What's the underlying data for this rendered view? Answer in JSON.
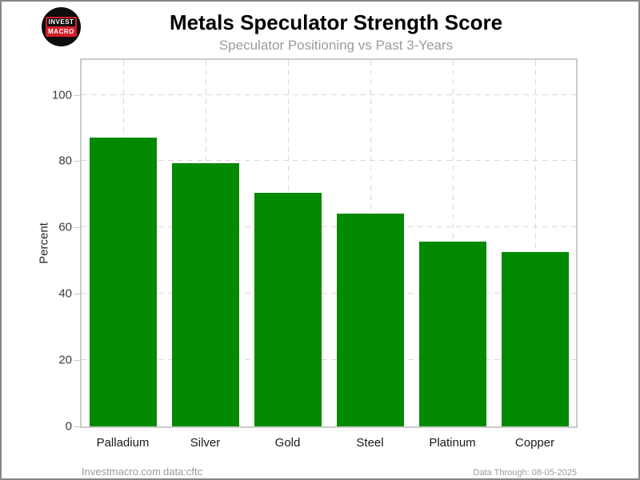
{
  "header": {
    "title": "Metals Speculator Strength Score",
    "subtitle": "Speculator Positioning vs Past 3-Years",
    "logo": {
      "line1": "INVEST",
      "line2": "MACRO"
    }
  },
  "chart_data": {
    "type": "bar",
    "title": "Metals Speculator Strength Score",
    "subtitle": "Speculator Positioning vs Past 3-Years",
    "categories": [
      "Palladium",
      "Silver",
      "Gold",
      "Steel",
      "Platinum",
      "Copper"
    ],
    "values": [
      87.2,
      79.4,
      70.4,
      64.3,
      55.7,
      52.7
    ],
    "xlabel": "",
    "ylabel": "Percent",
    "yticks": [
      0,
      20,
      40,
      60,
      80,
      100
    ],
    "ylim": [
      0,
      110.5
    ],
    "grid": "dashed",
    "legend": "none",
    "bar_color": "#028A02"
  },
  "footer": {
    "site": "Investmacro.com",
    "source": "data:cftc",
    "data_through": "Data Through: 08-05-2025"
  },
  "colors": {
    "bar_green": "#028A02",
    "logo_red": "#D21F2A",
    "outer_border": "#868686",
    "plot_border": "#CBCBCB",
    "gridline": "#D9D9D9",
    "subtitle_gray": "#9B9B9B",
    "footer_gray": "#9B9B9B",
    "title_black": "#000000"
  }
}
